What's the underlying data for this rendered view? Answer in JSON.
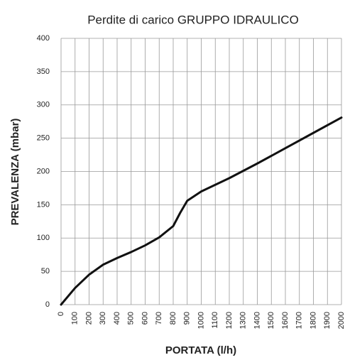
{
  "chart_data": {
    "type": "line",
    "title": "Perdite di carico GRUPPO IDRAULICO",
    "xlabel": "PORTATA (l/h)",
    "ylabel": "PREVALENZA (mbar)",
    "x": [
      0,
      100,
      200,
      300,
      400,
      500,
      600,
      700,
      800,
      850,
      900,
      1000,
      1200,
      1400,
      1600,
      1800,
      2000
    ],
    "series": [
      {
        "name": "GRUPPO IDRAULICO",
        "color": "#111111",
        "values": [
          0,
          25,
          45,
          60,
          70,
          79,
          89,
          101,
          118,
          138,
          156,
          170,
          190,
          212,
          235,
          258,
          281
        ]
      }
    ],
    "xlim": [
      0,
      2000
    ],
    "xticks": [
      0,
      100,
      200,
      300,
      400,
      500,
      600,
      700,
      800,
      900,
      1000,
      1100,
      1200,
      1300,
      1400,
      1500,
      1600,
      1700,
      1800,
      1900,
      2000
    ],
    "ylim": [
      0,
      400
    ],
    "yticks": [
      0,
      50,
      100,
      150,
      200,
      250,
      300,
      350,
      400
    ],
    "grid": true
  }
}
